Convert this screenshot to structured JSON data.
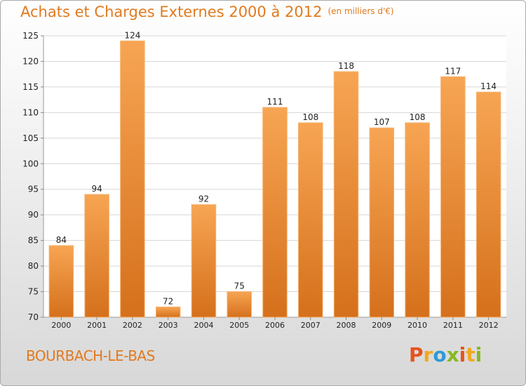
{
  "header": {
    "title": "Achats et Charges Externes 2000 à 2012",
    "unit": "(en milliers d'€)"
  },
  "footer": {
    "place": "BOURBACH-LE-BAS",
    "logo_letters": [
      "P",
      "r",
      "o",
      "x",
      "i",
      "t",
      "i"
    ],
    "logo_colors": [
      "#e6531c",
      "#f2a81d",
      "#2e9ad6",
      "#86b824",
      "#e6531c",
      "#f2a81d",
      "#86b824"
    ]
  },
  "colors": {
    "bar_top": "#f7a553",
    "bar_bottom": "#d5701c",
    "bar_edge": "#f4b36f",
    "grid": "#d6d6d6",
    "axis_text": "#222222"
  },
  "chart_data": {
    "type": "bar",
    "categories": [
      "2000",
      "2001",
      "2002",
      "2003",
      "2004",
      "2005",
      "2006",
      "2007",
      "2008",
      "2009",
      "2010",
      "2011",
      "2012"
    ],
    "values": [
      84,
      94,
      124,
      72,
      92,
      75,
      111,
      108,
      118,
      107,
      108,
      117,
      114
    ],
    "title": "Achats et Charges Externes 2000 à 2012",
    "subtitle": "(en milliers d'€)",
    "ylim": [
      70,
      125
    ],
    "yticks": [
      70,
      75,
      80,
      85,
      90,
      95,
      100,
      105,
      110,
      115,
      120,
      125
    ],
    "grid": true
  }
}
